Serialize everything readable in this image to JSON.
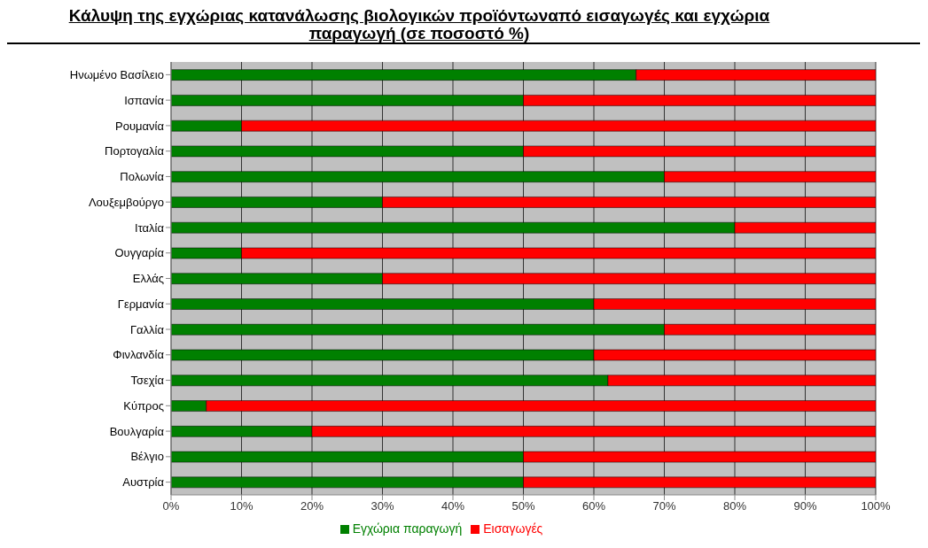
{
  "chart_data": {
    "type": "bar",
    "orientation": "horizontal",
    "stacked": true,
    "title": "Κάλυψη της εγχώριας κατανάλωσης βιολογικών προϊόντωναπό εισαγωγές και εγχώρια παραγωγή (σε ποσοστό %)",
    "categories": [
      "Ηνωμένο Βασίλειο",
      "Ισπανία",
      "Ρουμανία",
      "Πορτογαλία",
      "Πολωνία",
      "Λουξεμβούργο",
      "Ιταλία",
      "Ουγγαρία",
      "Ελλάς",
      "Γερμανία",
      "Γαλλία",
      "Φινλανδία",
      "Τσεχία",
      "Κύπρος",
      "Βουλγαρία",
      "Βέλγιο",
      "Αυστρία"
    ],
    "series": [
      {
        "name": "Εγχώρια παραγωγή",
        "color": "#008000",
        "values": [
          66,
          50,
          10,
          50,
          70,
          30,
          80,
          10,
          30,
          60,
          70,
          60,
          62,
          5,
          20,
          50,
          50
        ]
      },
      {
        "name": "Εισαγωγές",
        "color": "#ff0000",
        "values": [
          34,
          50,
          90,
          50,
          30,
          70,
          20,
          90,
          70,
          40,
          30,
          40,
          38,
          95,
          80,
          50,
          50
        ]
      }
    ],
    "xlim": [
      0,
      100
    ],
    "xticks": [
      {
        "value": 0,
        "label": "0%"
      },
      {
        "value": 10,
        "label": "10%"
      },
      {
        "value": 20,
        "label": "20%"
      },
      {
        "value": 30,
        "label": "30%"
      },
      {
        "value": 40,
        "label": "40%"
      },
      {
        "value": 50,
        "label": "50%"
      },
      {
        "value": 60,
        "label": "60%"
      },
      {
        "value": 70,
        "label": "70%"
      },
      {
        "value": 80,
        "label": "80%"
      },
      {
        "value": 90,
        "label": "90%"
      },
      {
        "value": 100,
        "label": "100%"
      }
    ],
    "grid": "x",
    "legend": "bottom"
  }
}
